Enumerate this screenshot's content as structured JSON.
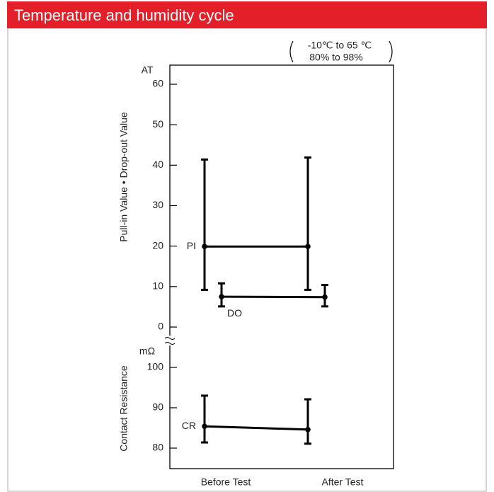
{
  "chart_data": {
    "type": "errorbar",
    "title": "Temperature and humidity cycle",
    "categories": [
      "Before Test",
      "After Test"
    ],
    "annotation": [
      "-10℃ to 65 ℃",
      "80% to 98%"
    ],
    "panels": [
      {
        "ylabel": "Pull-in Value • Drop-out Value",
        "unit": "AT",
        "ylim": [
          0,
          60
        ],
        "yticks": [
          0,
          10,
          20,
          30,
          40,
          50,
          60
        ],
        "series": [
          {
            "name": "PI",
            "color": "#000000",
            "values": [
              19.9,
              19.9
            ],
            "low": [
              9.2,
              9.2
            ],
            "high": [
              41.4,
              41.9
            ]
          },
          {
            "name": "DO",
            "color": "#000000",
            "values": [
              7.5,
              7.4
            ],
            "low": [
              5.1,
              5.1
            ],
            "high": [
              10.8,
              10.4
            ]
          }
        ]
      },
      {
        "ylabel": "Contact Resistance",
        "unit": "mΩ",
        "ylim": [
          80,
          100
        ],
        "yticks": [
          80,
          90,
          100
        ],
        "series": [
          {
            "name": "CR",
            "color": "#000000",
            "values": [
              85.4,
              84.6
            ],
            "low": [
              81.4,
              81.1
            ],
            "high": [
              93,
              92.1
            ]
          }
        ]
      }
    ]
  }
}
